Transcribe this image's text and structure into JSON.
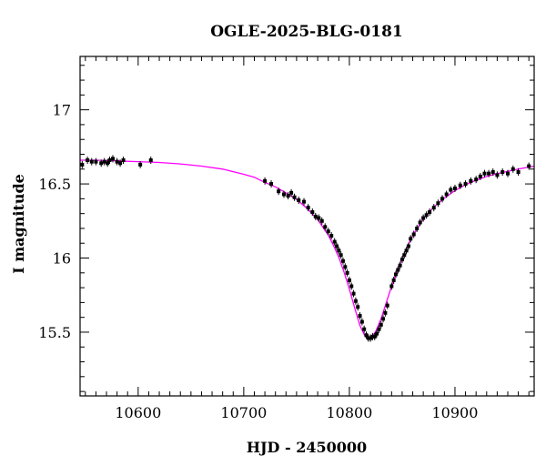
{
  "chart_data": {
    "type": "scatter",
    "title": "OGLE-2025-BLG-0181",
    "xlabel": "HJD - 2450000",
    "ylabel": "I magnitude",
    "xlim": [
      10545,
      10975
    ],
    "ylim": [
      17.36,
      15.07
    ],
    "y_inverted": true,
    "grid": false,
    "x_ticks": [
      10600,
      10700,
      10800,
      10900
    ],
    "x_tick_labels": [
      "10600",
      "10700",
      "10800",
      "10900"
    ],
    "y_ticks": [
      15.5,
      16,
      16.5,
      17
    ],
    "y_tick_labels": [
      "15.5",
      "16",
      "16.5",
      "17"
    ],
    "colors": {
      "model": "#ff00ff",
      "points": "#000000",
      "axes": "#000000"
    },
    "model": {
      "name": "",
      "x": [
        10545,
        10560,
        10580,
        10600,
        10620,
        10640,
        10660,
        10680,
        10700,
        10710,
        10720,
        10730,
        10740,
        10750,
        10760,
        10770,
        10780,
        10785,
        10790,
        10795,
        10800,
        10805,
        10810,
        10815,
        10818,
        10820,
        10822,
        10825,
        10830,
        10835,
        10840,
        10845,
        10850,
        10855,
        10860,
        10870,
        10880,
        10890,
        10900,
        10910,
        10920,
        10930,
        10940,
        10950,
        10960,
        10975
      ],
      "y": [
        16.66,
        16.66,
        16.655,
        16.65,
        16.645,
        16.635,
        16.62,
        16.6,
        16.565,
        16.545,
        16.51,
        16.48,
        16.44,
        16.395,
        16.335,
        16.26,
        16.155,
        16.085,
        16.005,
        15.905,
        15.79,
        15.665,
        15.545,
        15.47,
        15.455,
        15.46,
        15.475,
        15.505,
        15.59,
        15.7,
        15.81,
        15.91,
        16.0,
        16.08,
        16.15,
        16.265,
        16.345,
        16.405,
        16.455,
        16.495,
        16.525,
        16.55,
        16.57,
        16.585,
        16.6,
        16.62
      ]
    },
    "series": [
      {
        "name": "",
        "x": [
          10547,
          10552,
          10556,
          10560,
          10565,
          10568,
          10571,
          10573,
          10576,
          10580,
          10583,
          10586,
          10602,
          10612,
          10720,
          10726,
          10733,
          10738,
          10742,
          10745,
          10748,
          10752,
          10757,
          10761,
          10765,
          10768,
          10771,
          10774,
          10777,
          10780,
          10783,
          10786,
          10788,
          10790,
          10792,
          10794,
          10796,
          10798,
          10800,
          10802,
          10804,
          10806,
          10808,
          10810,
          10812,
          10814,
          10816,
          10818,
          10820,
          10822,
          10824,
          10826,
          10828,
          10830,
          10832,
          10834,
          10836,
          10840,
          10842,
          10844,
          10846,
          10848,
          10850,
          10852,
          10854,
          10856,
          10858,
          10861,
          10864,
          10867,
          10870,
          10873,
          10876,
          10880,
          10884,
          10888,
          10892,
          10896,
          10900,
          10905,
          10910,
          10915,
          10920,
          10924,
          10928,
          10932,
          10936,
          10940,
          10945,
          10950,
          10955,
          10960,
          10970
        ],
        "y": [
          16.63,
          16.66,
          16.65,
          16.65,
          16.64,
          16.65,
          16.64,
          16.66,
          16.67,
          16.65,
          16.64,
          16.66,
          16.63,
          16.66,
          16.52,
          16.5,
          16.45,
          16.43,
          16.42,
          16.44,
          16.41,
          16.39,
          16.38,
          16.34,
          16.31,
          16.28,
          16.27,
          16.25,
          16.21,
          16.18,
          16.15,
          16.11,
          16.08,
          16.05,
          16.02,
          15.98,
          15.94,
          15.9,
          15.85,
          15.81,
          15.76,
          15.71,
          15.67,
          15.61,
          15.57,
          15.52,
          15.48,
          15.46,
          15.46,
          15.47,
          15.47,
          15.49,
          15.52,
          15.55,
          15.59,
          15.63,
          15.68,
          15.81,
          15.85,
          15.89,
          15.92,
          15.95,
          15.99,
          16.02,
          16.05,
          16.08,
          16.13,
          16.16,
          16.2,
          16.24,
          16.27,
          16.29,
          16.31,
          16.34,
          16.37,
          16.4,
          16.43,
          16.46,
          16.47,
          16.49,
          16.5,
          16.52,
          16.53,
          16.55,
          16.57,
          16.57,
          16.58,
          16.56,
          16.58,
          16.57,
          16.6,
          16.58,
          16.62
        ]
      }
    ]
  }
}
